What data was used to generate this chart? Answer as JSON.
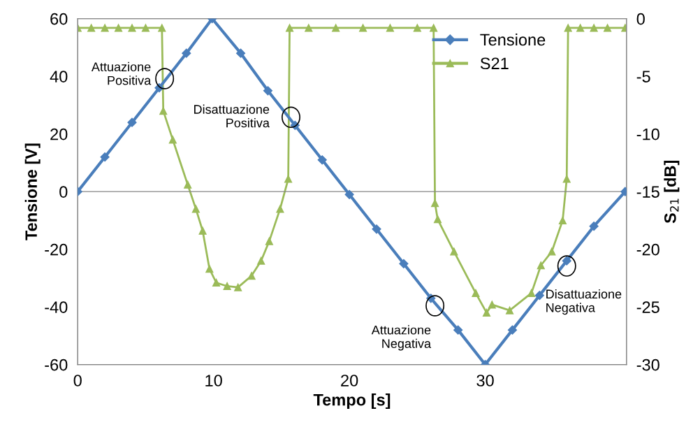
{
  "chart_data": {
    "type": "line",
    "xlabel": "Tempo [s]",
    "ylabel": "Tensione [V]",
    "y2label": "S$_{21}$ [dB]",
    "xlim": [
      0,
      40.4
    ],
    "xticks": [
      0,
      10,
      20,
      30
    ],
    "ylim": [
      -60,
      60
    ],
    "yticks": [
      -60,
      -40,
      -20,
      0,
      20,
      40,
      60
    ],
    "y2lim": [
      -30,
      0
    ],
    "y2ticks": [
      -30,
      -25,
      -20,
      -15,
      -10,
      -5,
      0
    ],
    "grid": false,
    "legend": "top right",
    "line_style": "solid",
    "ref_lines": [
      {
        "axis": "y",
        "value": 0,
        "color": "#868686"
      }
    ],
    "series": [
      {
        "name": "Tensione",
        "color": "#4a7ebb",
        "marker": "diamond",
        "x": [
          0,
          2,
          4,
          6,
          8,
          9.9,
          12,
          14,
          16,
          18,
          20,
          22,
          24,
          26,
          28,
          30,
          32,
          34,
          36,
          38,
          40.3
        ],
        "values": [
          0,
          12,
          24,
          36,
          48,
          60,
          48,
          35,
          23,
          11,
          -1,
          -13,
          -25,
          -37,
          -48,
          -60,
          -48,
          -36,
          -24,
          -12,
          0
        ]
      },
      {
        "name": "S21",
        "color": "#9bbb59",
        "marker": "triangle",
        "axis": "y2",
        "x": [
          0,
          1,
          2,
          3,
          4,
          5,
          6.2,
          6.3,
          7,
          8.1,
          8.7,
          9.2,
          9.7,
          10.2,
          11,
          11.8,
          12.8,
          13.5,
          14.1,
          14.9,
          15.5,
          15.6,
          17,
          19,
          21,
          23,
          25,
          26.2,
          26.3,
          26.5,
          27.7,
          29.3,
          30.1,
          30.5,
          31.8,
          33.4,
          34.1,
          34.9,
          35.7,
          36,
          36.1,
          37,
          38,
          39,
          40.3
        ],
        "values": [
          -0.8,
          -0.8,
          -0.8,
          -0.8,
          -0.8,
          -0.8,
          -0.8,
          -8,
          -10.5,
          -14.4,
          -16.5,
          -18.4,
          -21.7,
          -22.9,
          -23.2,
          -23.3,
          -22.3,
          -21,
          -19.3,
          -16.5,
          -13.9,
          -0.8,
          -0.8,
          -0.8,
          -0.8,
          -0.8,
          -0.8,
          -0.8,
          -16,
          -17.4,
          -20.2,
          -23.8,
          -25.5,
          -24.8,
          -25.3,
          -23.8,
          -21.4,
          -20.2,
          -17.5,
          -13.9,
          -0.8,
          -0.8,
          -0.8,
          -0.8,
          -0.8
        ]
      }
    ],
    "annotations": [
      {
        "text": "Attuazione\nPositiva",
        "x": 6.4,
        "y": 39.2
      },
      {
        "text": "Disattuazione\nPositiva",
        "x": 15.7,
        "y": 25.8
      },
      {
        "text": "Attuazione\nNegativa",
        "x": 26.3,
        "y": -39.6
      },
      {
        "text": "Disattuazione\nNegativa",
        "x": 36,
        "y": -25.8
      }
    ]
  }
}
